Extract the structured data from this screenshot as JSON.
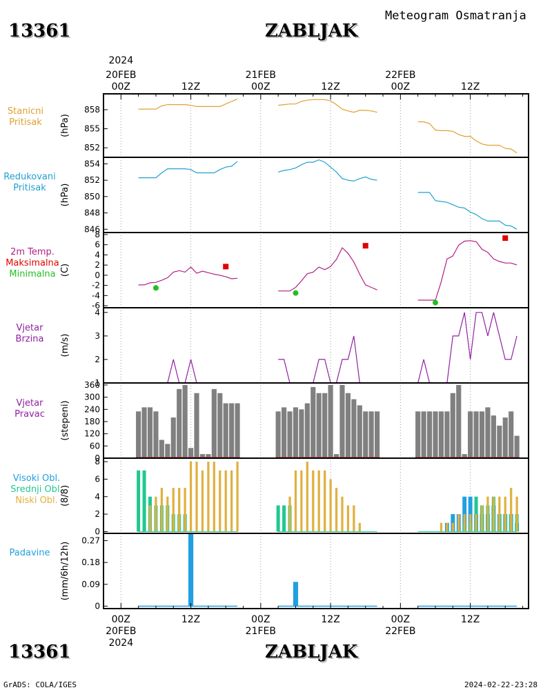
{
  "header": {
    "station_id": "13361",
    "station_name": "ZABLJAK",
    "meteogram_title": "Meteogram Osmatranja"
  },
  "footer": {
    "station_id": "13361",
    "station_name": "ZABLJAK",
    "credit": "GrADS: COLA/IGES",
    "timestamp": "2024-02-22-23:28"
  },
  "colors": {
    "pressure": "#e0a030",
    "reduced_pressure": "#20a0d0",
    "temperature": "#b02080",
    "tmax": "#e00000",
    "tmin": "#20c020",
    "wind": "#9020a0",
    "bars": "#808080",
    "cloud_high": "#20a0e0",
    "cloud_mid": "#20c890",
    "cloud_low": "#e0b040",
    "precip": "#20a0e0"
  },
  "time_axis": {
    "top_year": "2024",
    "top_labels": [
      {
        "t": 0,
        "lines": [
          "20FEB",
          "00Z"
        ]
      },
      {
        "t": 12,
        "lines": [
          "12Z"
        ]
      },
      {
        "t": 24,
        "lines": [
          "21FEB",
          "00Z"
        ]
      },
      {
        "t": 36,
        "lines": [
          "12Z"
        ]
      },
      {
        "t": 48,
        "lines": [
          "22FEB",
          "00Z"
        ]
      },
      {
        "t": 60,
        "lines": [
          "12Z"
        ]
      }
    ],
    "bottom_labels": [
      {
        "t": 0,
        "lines": [
          "00Z",
          "20FEB",
          "2024"
        ]
      },
      {
        "t": 12,
        "lines": [
          "12Z"
        ]
      },
      {
        "t": 24,
        "lines": [
          "00Z",
          "21FEB"
        ]
      },
      {
        "t": 36,
        "lines": [
          "12Z"
        ]
      },
      {
        "t": 48,
        "lines": [
          "00Z",
          "22FEB"
        ]
      },
      {
        "t": 60,
        "lines": [
          "12Z"
        ]
      }
    ],
    "range_hours": [
      -3,
      70
    ]
  },
  "panel_labels": {
    "pressure": [
      "Stanicni",
      "Pritisak"
    ],
    "reduced": [
      "Redukovani",
      "Pritisak"
    ],
    "temp": [
      "2m Temp.",
      "Maksimalna",
      "Minimalna"
    ],
    "wind_speed": [
      "Vjetar",
      "Brzina"
    ],
    "wind_dir": [
      "Vjetar",
      "Pravac"
    ],
    "clouds": [
      "Visoki Obl.",
      "Srednji Obl.",
      "Niski Obl."
    ],
    "precip": [
      "Padavine"
    ]
  },
  "chart_data": [
    {
      "type": "line",
      "id": "pressure",
      "ylabel": "(hPa)",
      "ylim": [
        850.5,
        860.5
      ],
      "yticks": [
        858,
        855,
        852
      ],
      "segments": [
        {
          "x": [
            3,
            4,
            5,
            6,
            7,
            8,
            9,
            10,
            11,
            12,
            13,
            14,
            15,
            16,
            17,
            18,
            19,
            20
          ],
          "y": [
            858.1,
            858.1,
            858.1,
            858.1,
            858.6,
            858.8,
            858.8,
            858.8,
            858.8,
            858.7,
            858.5,
            858.5,
            858.5,
            858.5,
            858.5,
            858.9,
            859.3,
            859.7
          ]
        },
        {
          "x": [
            27,
            28,
            29,
            30,
            31,
            32,
            33,
            34,
            35,
            36,
            37,
            38,
            39,
            40,
            41,
            42,
            43,
            44
          ],
          "y": [
            858.7,
            858.8,
            858.9,
            858.9,
            859.3,
            859.5,
            859.6,
            859.6,
            859.6,
            859.4,
            858.8,
            858.1,
            857.8,
            857.6,
            857.9,
            857.9,
            857.8,
            857.6
          ]
        },
        {
          "x": [
            51,
            52,
            53,
            54,
            55,
            56,
            57,
            58,
            59,
            60,
            61,
            62,
            63,
            64,
            65,
            66,
            67,
            68
          ],
          "y": [
            856.1,
            856.1,
            855.8,
            854.8,
            854.7,
            854.7,
            854.6,
            854.1,
            853.8,
            853.8,
            853.1,
            852.6,
            852.4,
            852.4,
            852.4,
            851.9,
            851.8,
            851.2
          ]
        }
      ]
    },
    {
      "type": "line",
      "id": "reduced_pressure",
      "ylabel": "(hPa)",
      "ylim": [
        845.6,
        854.8
      ],
      "yticks": [
        854,
        852,
        850,
        848,
        846
      ],
      "segments": [
        {
          "x": [
            3,
            4,
            5,
            6,
            7,
            8,
            9,
            10,
            11,
            12,
            13,
            14,
            15,
            16,
            17,
            18,
            19,
            20
          ],
          "y": [
            852.3,
            852.3,
            852.3,
            852.3,
            852.9,
            853.4,
            853.4,
            853.4,
            853.4,
            853.3,
            852.9,
            852.9,
            852.9,
            852.9,
            853.3,
            853.6,
            853.7,
            854.3
          ]
        },
        {
          "x": [
            27,
            28,
            29,
            30,
            31,
            32,
            33,
            34,
            35,
            36,
            37,
            38,
            39,
            40,
            41,
            42,
            43,
            44
          ],
          "y": [
            853.0,
            853.2,
            853.3,
            853.5,
            853.9,
            854.2,
            854.2,
            854.5,
            854.2,
            853.6,
            853.0,
            852.2,
            852.0,
            851.9,
            852.2,
            852.4,
            852.1,
            852.0
          ]
        },
        {
          "x": [
            51,
            52,
            53,
            54,
            55,
            56,
            57,
            58,
            59,
            60,
            61,
            62,
            63,
            64,
            65,
            66,
            67,
            68
          ],
          "y": [
            850.5,
            850.5,
            850.5,
            849.5,
            849.4,
            849.3,
            849.0,
            848.7,
            848.6,
            848.1,
            847.8,
            847.3,
            847.0,
            847.0,
            847.0,
            846.5,
            846.4,
            846.0
          ]
        }
      ]
    },
    {
      "type": "line",
      "id": "temperature",
      "ylabel": "(C)",
      "ylim": [
        -6.4,
        8.4
      ],
      "yticks": [
        8,
        6,
        4,
        2,
        0,
        -2,
        -4,
        -6
      ],
      "segments": [
        {
          "x": [
            3,
            4,
            5,
            6,
            7,
            8,
            9,
            10,
            11,
            12,
            13,
            14,
            15,
            16,
            17,
            18,
            19,
            20
          ],
          "y": [
            -1.9,
            -1.9,
            -1.5,
            -1.4,
            -1.0,
            -0.5,
            0.6,
            0.9,
            0.6,
            1.6,
            0.4,
            0.8,
            0.5,
            0.2,
            0.0,
            -0.3,
            -0.7,
            -0.6
          ]
        },
        {
          "x": [
            27,
            28,
            29,
            30,
            31,
            32,
            33,
            34,
            35,
            36,
            37,
            38,
            39,
            40,
            41,
            42,
            43,
            44
          ],
          "y": [
            -3.1,
            -3.1,
            -3.1,
            -2.4,
            -1.1,
            0.3,
            0.6,
            1.6,
            1.1,
            1.7,
            3.1,
            5.4,
            4.3,
            2.6,
            0.2,
            -1.9,
            -2.4,
            -2.9
          ]
        },
        {
          "x": [
            51,
            52,
            53,
            54,
            55,
            56,
            57,
            58,
            59,
            60,
            61,
            62,
            63,
            64,
            65,
            66,
            67,
            68
          ],
          "y": [
            -4.9,
            -4.9,
            -4.9,
            -4.9,
            -1.3,
            3.2,
            3.8,
            5.9,
            6.7,
            6.8,
            6.6,
            5.1,
            4.5,
            3.2,
            2.7,
            2.4,
            2.4,
            2.0
          ]
        }
      ],
      "tmax": [
        {
          "x": 18,
          "y": 1.7
        },
        {
          "x": 42,
          "y": 5.8
        },
        {
          "x": 66,
          "y": 7.3
        }
      ],
      "tmin": [
        {
          "x": 6,
          "y": -2.5
        },
        {
          "x": 30,
          "y": -3.5
        },
        {
          "x": 54,
          "y": -5.4
        }
      ]
    },
    {
      "type": "line",
      "id": "wind_speed",
      "ylabel": "(m/s)",
      "ylim": [
        1,
        4.2
      ],
      "yticks": [
        4,
        3,
        2,
        1
      ],
      "segments": [
        {
          "x": [
            3,
            4,
            5,
            6,
            7,
            8,
            9,
            10,
            11,
            12,
            13,
            14,
            15,
            16,
            17,
            18,
            19,
            20
          ],
          "y": [
            1,
            1,
            1,
            1,
            1,
            1,
            2,
            1,
            1,
            2,
            1,
            1,
            1,
            1,
            1,
            1,
            1,
            1
          ]
        },
        {
          "x": [
            27,
            28,
            29,
            30,
            31,
            32,
            33,
            34,
            35,
            36,
            37,
            38,
            39,
            40,
            41,
            42,
            43,
            44
          ],
          "y": [
            2,
            2,
            1,
            1,
            1,
            1,
            1,
            2,
            2,
            1,
            1,
            2,
            2,
            3,
            1,
            1,
            1,
            1
          ]
        },
        {
          "x": [
            51,
            52,
            53,
            54,
            55,
            56,
            57,
            58,
            59,
            60,
            61,
            62,
            63,
            64,
            65,
            66,
            67,
            68
          ],
          "y": [
            1,
            2,
            1,
            1,
            1,
            1,
            3,
            3,
            4,
            2,
            4,
            4,
            3,
            4,
            3,
            2,
            2,
            3
          ]
        }
      ]
    },
    {
      "type": "bar",
      "id": "wind_direction",
      "ylabel": "(stepeni)",
      "ylim": [
        0,
        370
      ],
      "yticks": [
        360,
        300,
        240,
        180,
        120,
        60,
        0
      ],
      "x": [
        3,
        4,
        5,
        6,
        7,
        8,
        9,
        10,
        11,
        12,
        13,
        14,
        15,
        16,
        17,
        18,
        19,
        20,
        27,
        28,
        29,
        30,
        31,
        32,
        33,
        34,
        35,
        36,
        37,
        38,
        39,
        40,
        41,
        42,
        43,
        44,
        51,
        52,
        53,
        54,
        55,
        56,
        57,
        58,
        59,
        60,
        61,
        62,
        63,
        64,
        65,
        66,
        67,
        68
      ],
      "values": [
        230,
        250,
        250,
        230,
        90,
        70,
        200,
        340,
        360,
        50,
        320,
        20,
        20,
        340,
        320,
        270,
        270,
        270,
        230,
        250,
        230,
        250,
        240,
        270,
        350,
        320,
        320,
        360,
        20,
        360,
        320,
        290,
        260,
        230,
        230,
        230,
        230,
        230,
        230,
        230,
        230,
        230,
        320,
        360,
        20,
        230,
        230,
        230,
        250,
        210,
        160,
        200,
        230,
        110
      ]
    },
    {
      "type": "bar",
      "id": "clouds",
      "ylabel": "(8/8)",
      "ylim": [
        -0.2,
        8.4
      ],
      "yticks": [
        8,
        6,
        4,
        2,
        0
      ],
      "series": [
        {
          "name": "Visoki Obl.",
          "x": [
            56,
            57,
            58,
            59,
            60,
            61,
            62,
            63,
            64,
            65,
            66,
            67,
            68
          ],
          "values": [
            1,
            2,
            2,
            4,
            4,
            2,
            2,
            2,
            3,
            2,
            2,
            2,
            1
          ]
        },
        {
          "name": "Srednji Obl.",
          "x": [
            3,
            4,
            5,
            6,
            7,
            8,
            9,
            10,
            11,
            27,
            28,
            29,
            59,
            60,
            61,
            62,
            63,
            64,
            65,
            66,
            67,
            68
          ],
          "values": [
            7,
            7,
            4,
            3,
            3,
            3,
            2,
            2,
            2,
            3,
            3,
            3,
            1,
            1,
            4,
            3,
            3,
            4,
            2,
            2,
            2,
            2
          ]
        },
        {
          "name": "Niski Obl.",
          "x": [
            5,
            6,
            7,
            8,
            9,
            10,
            11,
            12,
            13,
            14,
            15,
            16,
            17,
            18,
            19,
            20,
            29,
            30,
            31,
            32,
            33,
            34,
            35,
            36,
            37,
            38,
            39,
            40,
            41,
            55,
            56,
            57,
            58,
            59,
            60,
            61,
            62,
            63,
            64,
            65,
            66,
            67,
            68
          ],
          "values": [
            3,
            4,
            5,
            4,
            5,
            5,
            5,
            8,
            8,
            7,
            8,
            8,
            7,
            7,
            7,
            8,
            4,
            7,
            7,
            8,
            7,
            7,
            7,
            6,
            5,
            4,
            3,
            3,
            1,
            1,
            1,
            1,
            2,
            2,
            2,
            2,
            3,
            4,
            4,
            4,
            4,
            5,
            4
          ]
        }
      ]
    },
    {
      "type": "bar",
      "id": "precipitation",
      "ylabel": "(mm/6h/12h)",
      "ylim": [
        -0.01,
        0.3
      ],
      "yticks": [
        0.27,
        0.18,
        0.09,
        0
      ],
      "ytick_labels": [
        "0.27",
        "0.18",
        "0.09",
        "0"
      ],
      "x": [
        12,
        30
      ],
      "values": [
        0.3,
        0.1
      ],
      "baseline_segments": [
        [
          3,
          20
        ],
        [
          27,
          44
        ],
        [
          51,
          68
        ]
      ]
    }
  ]
}
